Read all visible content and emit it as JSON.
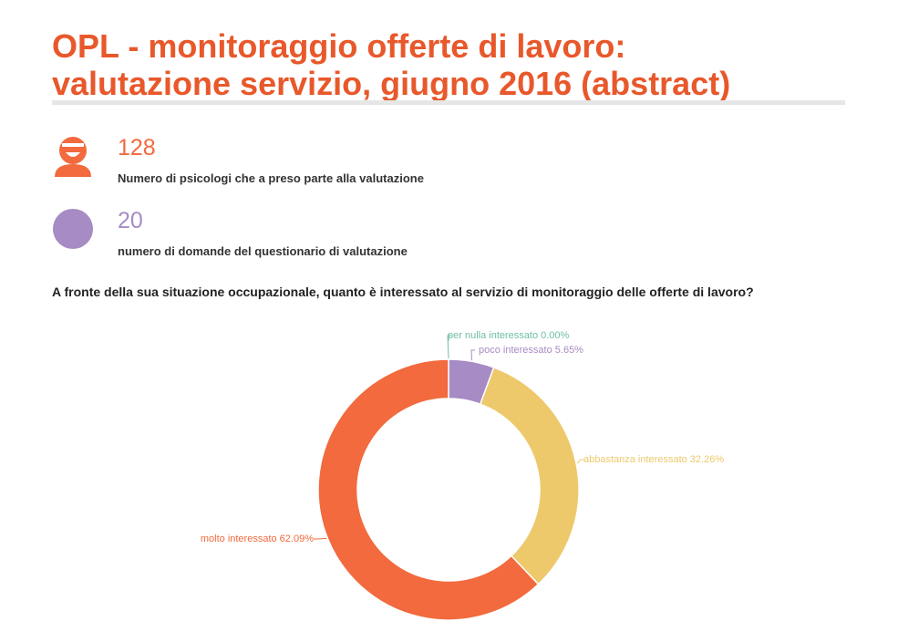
{
  "title": {
    "line1": "OPL - monitoraggio offerte di lavoro:",
    "line2": "valutazione servizio, giugno 2016 (abstract)"
  },
  "stats": [
    {
      "value": "128",
      "label": "Numero di psicologi che a preso parte alla valutazione",
      "color": "#f26a3d",
      "icon": "person-icon"
    },
    {
      "value": "20",
      "label": "numero di domande del questionario di valutazione",
      "color": "#a78bc4",
      "icon": "circle-icon"
    }
  ],
  "question": "A fronte della sua situazione occupazionale, quanto è interessato al servizio di monitoraggio delle offerte di lavoro?",
  "chart_data": {
    "type": "pie",
    "style": "donut",
    "slices": [
      {
        "label": "per nulla interessato",
        "value": 0.0,
        "display": "per nulla interessato 0.00%",
        "color": "#6fbf9e"
      },
      {
        "label": "poco interessato",
        "value": 5.65,
        "display": "poco interessato 5.65%",
        "color": "#a78bc4"
      },
      {
        "label": "abbastanza interessato",
        "value": 32.26,
        "display": "abbastanza interessato 32.26%",
        "color": "#edc96b"
      },
      {
        "label": "molto interessato",
        "value": 62.09,
        "display": "molto interessato 62.09%",
        "color": "#f26a3d"
      }
    ],
    "legend": "none"
  }
}
